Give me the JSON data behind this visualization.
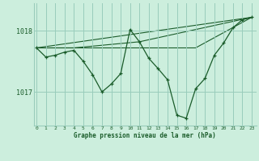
{
  "background_color": "#cceedd",
  "grid_color": "#99ccbb",
  "line_color": "#1a5c2a",
  "title": "Graphe pression niveau de la mer (hPa)",
  "xlabel_ticks": [
    0,
    1,
    2,
    3,
    4,
    5,
    6,
    7,
    8,
    9,
    10,
    11,
    12,
    13,
    14,
    15,
    16,
    17,
    18,
    19,
    20,
    21,
    22,
    23
  ],
  "yticks": [
    1017,
    1018
  ],
  "ylim": [
    1016.45,
    1018.45
  ],
  "xlim": [
    -0.3,
    23.5
  ],
  "main_series": {
    "x": [
      0,
      1,
      2,
      3,
      4,
      5,
      6,
      7,
      8,
      9,
      10,
      11,
      12,
      13,
      14,
      15,
      16,
      17,
      18,
      19,
      20,
      21,
      22,
      23
    ],
    "y": [
      1017.72,
      1017.57,
      1017.6,
      1017.65,
      1017.68,
      1017.5,
      1017.28,
      1017.0,
      1017.13,
      1017.3,
      1018.02,
      1017.82,
      1017.55,
      1017.38,
      1017.2,
      1016.62,
      1016.57,
      1017.05,
      1017.22,
      1017.6,
      1017.8,
      1018.05,
      1018.18,
      1018.22
    ]
  },
  "straight_line1": {
    "x": [
      0,
      23
    ],
    "y": [
      1017.72,
      1018.22
    ]
  },
  "straight_line2": {
    "x": [
      0,
      4,
      11,
      23
    ],
    "y": [
      1017.72,
      1017.72,
      1017.82,
      1018.22
    ]
  },
  "straight_line3": {
    "x": [
      0,
      17,
      23
    ],
    "y": [
      1017.72,
      1017.72,
      1018.22
    ]
  }
}
